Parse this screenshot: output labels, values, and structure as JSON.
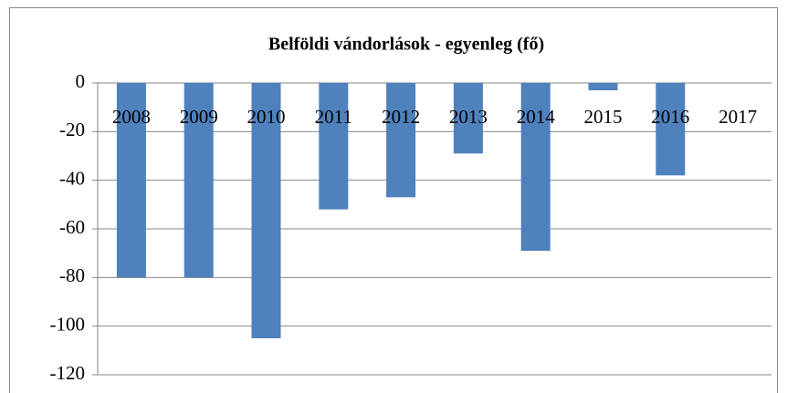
{
  "chart_data": {
    "type": "bar",
    "title": "Belföldi vándorlások - egyenleg (fő)",
    "categories": [
      "2008",
      "2009",
      "2010",
      "2011",
      "2012",
      "2013",
      "2014",
      "2015",
      "2016",
      "2017"
    ],
    "values": [
      -80,
      -80,
      -105,
      -52,
      -47,
      -29,
      -69,
      -3,
      -38,
      0
    ],
    "color": "#4f81bd",
    "ylim": [
      -120,
      0
    ],
    "yticks": [
      0,
      -20,
      -40,
      -60,
      -80,
      -100,
      -120
    ],
    "grid": true
  }
}
